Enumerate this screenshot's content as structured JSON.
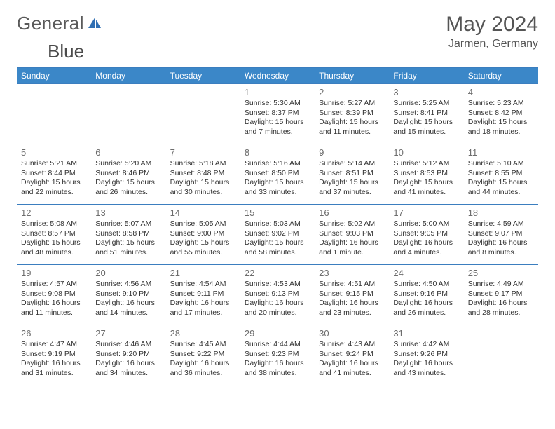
{
  "brand": {
    "general": "General",
    "blue": "Blue",
    "icon_color": "#2f6fb3"
  },
  "title": "May 2024",
  "location": "Jarmen, Germany",
  "colors": {
    "header_bg": "#3b87c8",
    "header_fg": "#ffffff",
    "rule": "#3b7ebf",
    "text": "#333333",
    "muted": "#6d6d6d",
    "bg": "#ffffff"
  },
  "fonts": {
    "title_pt": 30,
    "location_pt": 16,
    "th_pt": 12,
    "daynum_pt": 13,
    "info_pt": 10.5
  },
  "weekdays": [
    "Sunday",
    "Monday",
    "Tuesday",
    "Wednesday",
    "Thursday",
    "Friday",
    "Saturday"
  ],
  "weeks": [
    [
      {
        "empty": true
      },
      {
        "empty": true
      },
      {
        "empty": true
      },
      {
        "day": "1",
        "sunrise": "5:30 AM",
        "sunset": "8:37 PM",
        "daylight": "15 hours and 7 minutes."
      },
      {
        "day": "2",
        "sunrise": "5:27 AM",
        "sunset": "8:39 PM",
        "daylight": "15 hours and 11 minutes."
      },
      {
        "day": "3",
        "sunrise": "5:25 AM",
        "sunset": "8:41 PM",
        "daylight": "15 hours and 15 minutes."
      },
      {
        "day": "4",
        "sunrise": "5:23 AM",
        "sunset": "8:42 PM",
        "daylight": "15 hours and 18 minutes."
      }
    ],
    [
      {
        "day": "5",
        "sunrise": "5:21 AM",
        "sunset": "8:44 PM",
        "daylight": "15 hours and 22 minutes."
      },
      {
        "day": "6",
        "sunrise": "5:20 AM",
        "sunset": "8:46 PM",
        "daylight": "15 hours and 26 minutes."
      },
      {
        "day": "7",
        "sunrise": "5:18 AM",
        "sunset": "8:48 PM",
        "daylight": "15 hours and 30 minutes."
      },
      {
        "day": "8",
        "sunrise": "5:16 AM",
        "sunset": "8:50 PM",
        "daylight": "15 hours and 33 minutes."
      },
      {
        "day": "9",
        "sunrise": "5:14 AM",
        "sunset": "8:51 PM",
        "daylight": "15 hours and 37 minutes."
      },
      {
        "day": "10",
        "sunrise": "5:12 AM",
        "sunset": "8:53 PM",
        "daylight": "15 hours and 41 minutes."
      },
      {
        "day": "11",
        "sunrise": "5:10 AM",
        "sunset": "8:55 PM",
        "daylight": "15 hours and 44 minutes."
      }
    ],
    [
      {
        "day": "12",
        "sunrise": "5:08 AM",
        "sunset": "8:57 PM",
        "daylight": "15 hours and 48 minutes."
      },
      {
        "day": "13",
        "sunrise": "5:07 AM",
        "sunset": "8:58 PM",
        "daylight": "15 hours and 51 minutes."
      },
      {
        "day": "14",
        "sunrise": "5:05 AM",
        "sunset": "9:00 PM",
        "daylight": "15 hours and 55 minutes."
      },
      {
        "day": "15",
        "sunrise": "5:03 AM",
        "sunset": "9:02 PM",
        "daylight": "15 hours and 58 minutes."
      },
      {
        "day": "16",
        "sunrise": "5:02 AM",
        "sunset": "9:03 PM",
        "daylight": "16 hours and 1 minute."
      },
      {
        "day": "17",
        "sunrise": "5:00 AM",
        "sunset": "9:05 PM",
        "daylight": "16 hours and 4 minutes."
      },
      {
        "day": "18",
        "sunrise": "4:59 AM",
        "sunset": "9:07 PM",
        "daylight": "16 hours and 8 minutes."
      }
    ],
    [
      {
        "day": "19",
        "sunrise": "4:57 AM",
        "sunset": "9:08 PM",
        "daylight": "16 hours and 11 minutes."
      },
      {
        "day": "20",
        "sunrise": "4:56 AM",
        "sunset": "9:10 PM",
        "daylight": "16 hours and 14 minutes."
      },
      {
        "day": "21",
        "sunrise": "4:54 AM",
        "sunset": "9:11 PM",
        "daylight": "16 hours and 17 minutes."
      },
      {
        "day": "22",
        "sunrise": "4:53 AM",
        "sunset": "9:13 PM",
        "daylight": "16 hours and 20 minutes."
      },
      {
        "day": "23",
        "sunrise": "4:51 AM",
        "sunset": "9:15 PM",
        "daylight": "16 hours and 23 minutes."
      },
      {
        "day": "24",
        "sunrise": "4:50 AM",
        "sunset": "9:16 PM",
        "daylight": "16 hours and 26 minutes."
      },
      {
        "day": "25",
        "sunrise": "4:49 AM",
        "sunset": "9:17 PM",
        "daylight": "16 hours and 28 minutes."
      }
    ],
    [
      {
        "day": "26",
        "sunrise": "4:47 AM",
        "sunset": "9:19 PM",
        "daylight": "16 hours and 31 minutes."
      },
      {
        "day": "27",
        "sunrise": "4:46 AM",
        "sunset": "9:20 PM",
        "daylight": "16 hours and 34 minutes."
      },
      {
        "day": "28",
        "sunrise": "4:45 AM",
        "sunset": "9:22 PM",
        "daylight": "16 hours and 36 minutes."
      },
      {
        "day": "29",
        "sunrise": "4:44 AM",
        "sunset": "9:23 PM",
        "daylight": "16 hours and 38 minutes."
      },
      {
        "day": "30",
        "sunrise": "4:43 AM",
        "sunset": "9:24 PM",
        "daylight": "16 hours and 41 minutes."
      },
      {
        "day": "31",
        "sunrise": "4:42 AM",
        "sunset": "9:26 PM",
        "daylight": "16 hours and 43 minutes."
      },
      {
        "empty": true
      }
    ]
  ]
}
